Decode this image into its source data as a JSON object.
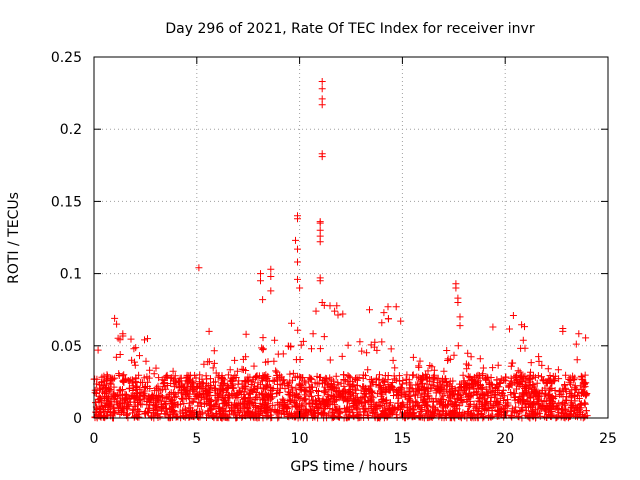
{
  "chart_data": {
    "type": "scatter",
    "title": "Day 296 of 2021, Rate Of TEC Index for receiver invr",
    "xlabel": "GPS time / hours",
    "ylabel": "ROTI / TECUs",
    "xlim": [
      0,
      25
    ],
    "ylim": [
      0,
      0.25
    ],
    "xticks": [
      0,
      5,
      10,
      15,
      20,
      25
    ],
    "yticks": [
      0,
      0.05,
      0.1,
      0.15,
      0.2,
      0.25
    ],
    "xtick_labels": [
      "0",
      "5",
      "10",
      "15",
      "20",
      "25"
    ],
    "ytick_labels": [
      "0",
      "0.05",
      "0.1",
      "0.15",
      "0.2",
      "0.25"
    ],
    "grid": true,
    "marker": "+",
    "color": "#ff0000",
    "time_range_hours": [
      0,
      24
    ],
    "baseline_max": 0.03,
    "hourly_activity_level": [
      0.03,
      0.06,
      0.055,
      0.045,
      0.03,
      0.05,
      0.04,
      0.045,
      0.065,
      0.07,
      0.075,
      0.08,
      0.06,
      0.055,
      0.07,
      0.05,
      0.045,
      0.06,
      0.045,
      0.04,
      0.065,
      0.045,
      0.035,
      0.06
    ],
    "series": [
      {
        "name": "notable points",
        "points": [
          [
            0.2,
            0.047
          ],
          [
            1.0,
            0.069
          ],
          [
            1.1,
            0.065
          ],
          [
            2.6,
            0.055
          ],
          [
            5.1,
            0.104
          ],
          [
            5.6,
            0.06
          ],
          [
            7.4,
            0.058
          ],
          [
            8.1,
            0.1
          ],
          [
            8.1,
            0.095
          ],
          [
            8.2,
            0.082
          ],
          [
            8.6,
            0.103
          ],
          [
            8.6,
            0.098
          ],
          [
            8.6,
            0.088
          ],
          [
            9.9,
            0.14
          ],
          [
            9.9,
            0.138
          ],
          [
            9.8,
            0.123
          ],
          [
            9.9,
            0.117
          ],
          [
            9.9,
            0.108
          ],
          [
            9.9,
            0.096
          ],
          [
            10.0,
            0.09
          ],
          [
            11.0,
            0.136
          ],
          [
            11.0,
            0.135
          ],
          [
            11.0,
            0.13
          ],
          [
            11.0,
            0.126
          ],
          [
            11.0,
            0.122
          ],
          [
            11.1,
            0.233
          ],
          [
            11.1,
            0.228
          ],
          [
            11.1,
            0.221
          ],
          [
            11.1,
            0.217
          ],
          [
            11.1,
            0.183
          ],
          [
            11.1,
            0.181
          ],
          [
            11.0,
            0.097
          ],
          [
            11.0,
            0.095
          ],
          [
            11.1,
            0.08
          ],
          [
            11.2,
            0.078
          ],
          [
            10.8,
            0.074
          ],
          [
            11.7,
            0.074
          ],
          [
            12.1,
            0.072
          ],
          [
            13.4,
            0.075
          ],
          [
            14.0,
            0.066
          ],
          [
            14.1,
            0.073
          ],
          [
            14.3,
            0.077
          ],
          [
            14.7,
            0.077
          ],
          [
            17.6,
            0.093
          ],
          [
            17.6,
            0.09
          ],
          [
            17.7,
            0.083
          ],
          [
            17.7,
            0.08
          ],
          [
            17.8,
            0.07
          ],
          [
            17.8,
            0.064
          ],
          [
            19.4,
            0.063
          ],
          [
            20.4,
            0.071
          ],
          [
            22.8,
            0.062
          ],
          [
            22.8,
            0.06
          ]
        ]
      }
    ]
  }
}
